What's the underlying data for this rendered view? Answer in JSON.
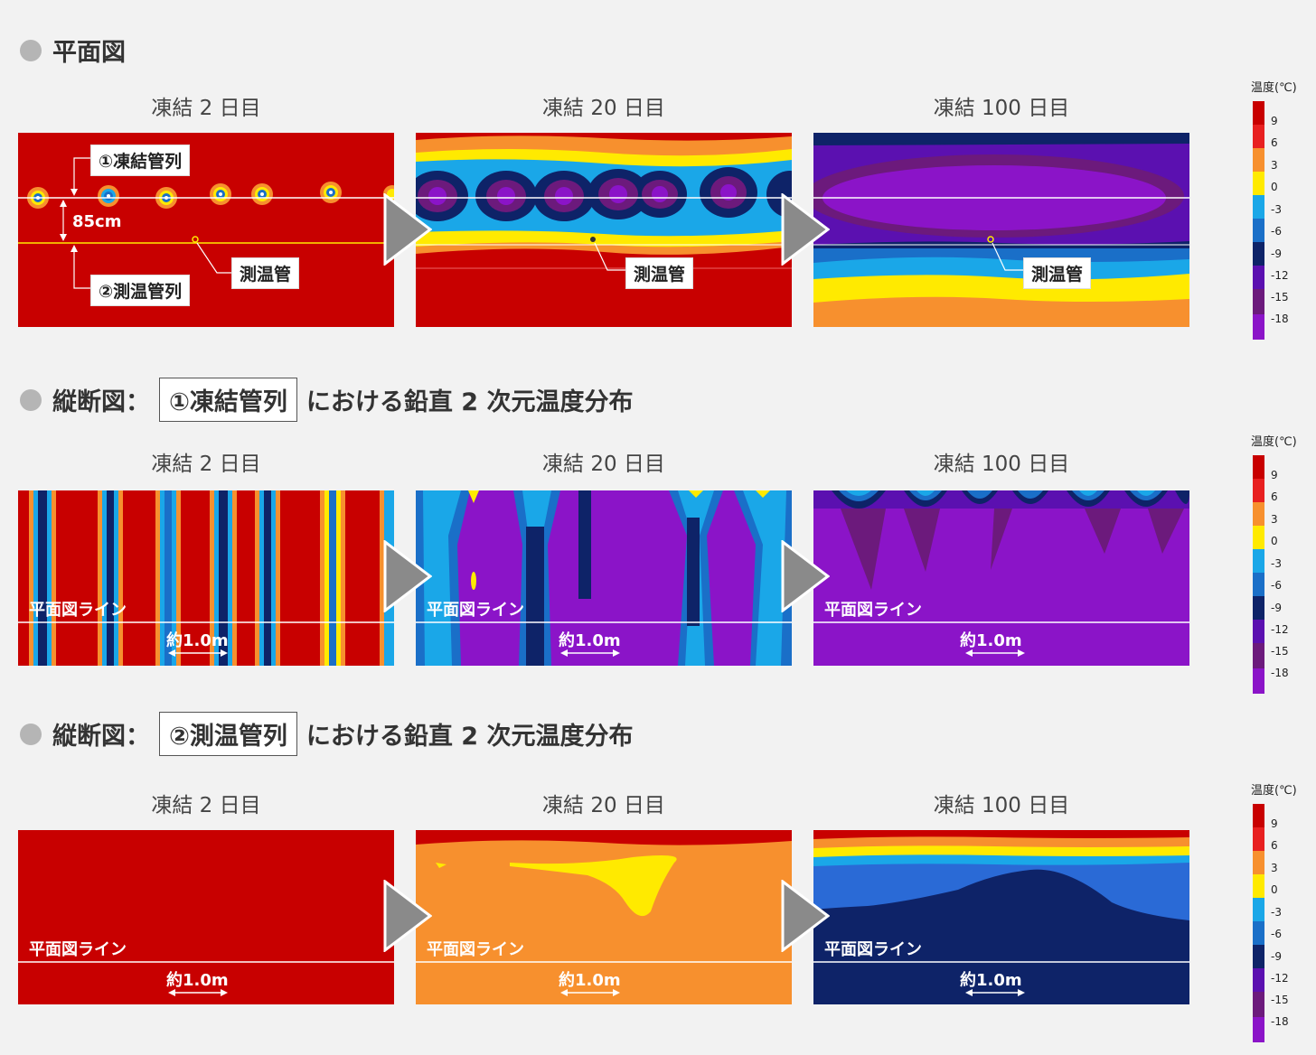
{
  "sections": [
    {
      "title": "平面図",
      "boxed": "",
      "suffix": ""
    },
    {
      "title": "縦断図：",
      "boxed": "①凍結管列",
      "suffix": "における鉛直 2 次元温度分布"
    },
    {
      "title": "縦断図：",
      "boxed": "②測温管列",
      "suffix": "における鉛直 2 次元温度分布"
    }
  ],
  "panel_labels": [
    "凍結 2 日目",
    "凍結 20 日目",
    "凍結 100 日目"
  ],
  "plan_annotations": {
    "freeze_row": "①凍結管列",
    "temp_row": "②測温管列",
    "spacing": "85cm",
    "temp_pipe": "測温管"
  },
  "section_annotations": {
    "plan_line": "平面図ライン",
    "scale": "約1.0m"
  },
  "legend": {
    "title": "温度(℃)",
    "ticks": [
      "9",
      "6",
      "3",
      "0",
      "-3",
      "-6",
      "-9",
      "-12",
      "-15",
      "-18"
    ],
    "colors": [
      "#c80000",
      "#e82020",
      "#f7902e",
      "#ffea00",
      "#1aa7e8",
      "#1a6fc8",
      "#0e2368",
      "#5b10b0",
      "#6c1a7c",
      "#8b14c8"
    ]
  }
}
